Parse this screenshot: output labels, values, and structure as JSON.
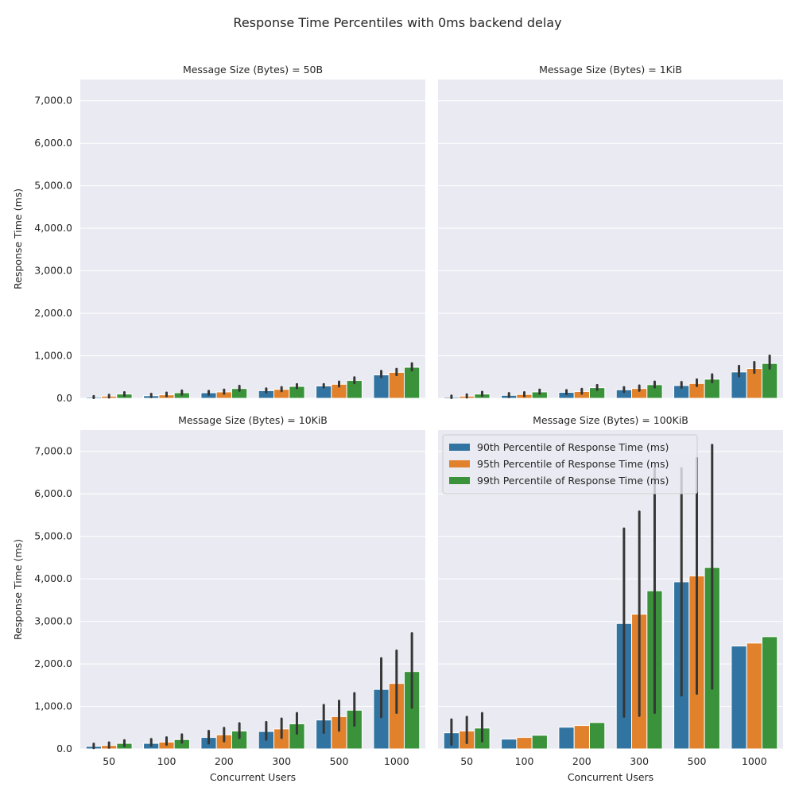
{
  "figure": {
    "title": "Response Time Percentiles with 0ms backend delay"
  },
  "colors": {
    "p90": "#3274a1",
    "p95": "#e1812c",
    "p99": "#3a923a",
    "panel_bg": "#eaeaf2",
    "grid": "#ffffff",
    "errorbar": "#363636"
  },
  "chart_data": [
    {
      "type": "bar",
      "title": "Message Size (Bytes) = 50B",
      "xlabel": "",
      "ylabel": "Response Time (ms)",
      "ylim": [
        0,
        7500
      ],
      "yticks": [
        0,
        1000,
        2000,
        3000,
        4000,
        5000,
        6000,
        7000
      ],
      "ytick_labels": [
        "0.0",
        "1,000.0",
        "2,000.0",
        "3,000.0",
        "4,000.0",
        "5,000.0",
        "6,000.0",
        "7,000.0"
      ],
      "show_xticklabels": false,
      "show_yticklabels": true,
      "categories": [
        "50",
        "100",
        "200",
        "300",
        "500",
        "1000"
      ],
      "series": [
        {
          "name": "90th Percentile of Response Time (ms)",
          "color_key": "p90",
          "values": [
            30,
            60,
            130,
            180,
            290,
            550
          ],
          "err_low": [
            10,
            30,
            90,
            140,
            260,
            500
          ],
          "err_high": [
            50,
            100,
            170,
            230,
            330,
            640
          ]
        },
        {
          "name": "95th Percentile of Response Time (ms)",
          "color_key": "p95",
          "values": [
            50,
            80,
            150,
            210,
            330,
            610
          ],
          "err_low": [
            20,
            50,
            110,
            170,
            280,
            550
          ],
          "err_high": [
            80,
            130,
            200,
            260,
            390,
            690
          ]
        },
        {
          "name": "99th Percentile of Response Time (ms)",
          "color_key": "p99",
          "values": [
            100,
            130,
            230,
            280,
            420,
            730
          ],
          "err_low": [
            60,
            90,
            180,
            240,
            360,
            660
          ],
          "err_high": [
            140,
            180,
            290,
            330,
            490,
            820
          ]
        }
      ]
    },
    {
      "type": "bar",
      "title": "Message Size (Bytes) = 1KiB",
      "xlabel": "",
      "ylabel": "",
      "ylim": [
        0,
        7500
      ],
      "show_xticklabels": false,
      "show_yticklabels": false,
      "categories": [
        "50",
        "100",
        "200",
        "300",
        "500",
        "1000"
      ],
      "series": [
        {
          "name": "90th Percentile of Response Time (ms)",
          "color_key": "p90",
          "values": [
            30,
            70,
            140,
            200,
            300,
            620
          ],
          "err_low": [
            10,
            30,
            100,
            150,
            250,
            520
          ],
          "err_high": [
            60,
            120,
            190,
            260,
            380,
            760
          ]
        },
        {
          "name": "95th Percentile of Response Time (ms)",
          "color_key": "p95",
          "values": [
            50,
            90,
            160,
            230,
            350,
            700
          ],
          "err_low": [
            20,
            50,
            110,
            180,
            290,
            600
          ],
          "err_high": [
            90,
            140,
            220,
            300,
            440,
            850
          ]
        },
        {
          "name": "99th Percentile of Response Time (ms)",
          "color_key": "p99",
          "values": [
            100,
            150,
            250,
            320,
            450,
            820
          ],
          "err_low": [
            60,
            110,
            200,
            260,
            380,
            700
          ],
          "err_high": [
            150,
            200,
            310,
            390,
            560,
            1000
          ]
        }
      ]
    },
    {
      "type": "bar",
      "title": "Message Size (Bytes) = 10KiB",
      "xlabel": "Concurrent Users",
      "ylabel": "Response Time (ms)",
      "ylim": [
        0,
        7500
      ],
      "yticks": [
        0,
        1000,
        2000,
        3000,
        4000,
        5000,
        6000,
        7000
      ],
      "ytick_labels": [
        "0.0",
        "1,000.0",
        "2,000.0",
        "3,000.0",
        "4,000.0",
        "5,000.0",
        "6,000.0",
        "7,000.0"
      ],
      "show_xticklabels": true,
      "show_yticklabels": true,
      "categories": [
        "50",
        "100",
        "200",
        "300",
        "500",
        "1000"
      ],
      "series": [
        {
          "name": "90th Percentile of Response Time (ms)",
          "color_key": "p90",
          "values": [
            60,
            130,
            270,
            410,
            680,
            1400
          ],
          "err_low": [
            20,
            80,
            130,
            220,
            380,
            750
          ],
          "err_high": [
            120,
            230,
            420,
            630,
            1030,
            2130
          ]
        },
        {
          "name": "95th Percentile of Response Time (ms)",
          "color_key": "p95",
          "values": [
            80,
            160,
            330,
            470,
            760,
            1540
          ],
          "err_low": [
            30,
            100,
            180,
            260,
            430,
            850
          ],
          "err_high": [
            150,
            270,
            490,
            710,
            1130,
            2310
          ]
        },
        {
          "name": "99th Percentile of Response Time (ms)",
          "color_key": "p99",
          "values": [
            130,
            220,
            420,
            590,
            910,
            1820
          ],
          "err_low": [
            70,
            150,
            260,
            360,
            550,
            970
          ],
          "err_high": [
            200,
            340,
            600,
            840,
            1310,
            2720
          ]
        }
      ]
    },
    {
      "type": "bar",
      "title": "Message Size (Bytes) = 100KiB",
      "xlabel": "Concurrent Users",
      "ylabel": "",
      "ylim": [
        0,
        7500
      ],
      "show_xticklabels": true,
      "show_yticklabels": false,
      "categories": [
        "50",
        "100",
        "200",
        "300",
        "500",
        "1000"
      ],
      "legend": {
        "placement": "top-left",
        "entries": [
          "90th Percentile of Response Time (ms)",
          "95th Percentile of Response Time (ms)",
          "99th Percentile of Response Time (ms)"
        ]
      },
      "series": [
        {
          "name": "90th Percentile of Response Time (ms)",
          "color_key": "p90",
          "values": [
            380,
            230,
            510,
            2950,
            3930,
            2420
          ],
          "err_low": [
            100,
            230,
            510,
            760,
            1260,
            2420
          ],
          "err_high": [
            690,
            230,
            510,
            5180,
            6600,
            2420
          ]
        },
        {
          "name": "95th Percentile of Response Time (ms)",
          "color_key": "p95",
          "values": [
            420,
            270,
            550,
            3170,
            4070,
            2490
          ],
          "err_low": [
            140,
            270,
            550,
            780,
            1300,
            2490
          ],
          "err_high": [
            750,
            270,
            550,
            5580,
            6840,
            2490
          ]
        },
        {
          "name": "99th Percentile of Response Time (ms)",
          "color_key": "p99",
          "values": [
            490,
            320,
            620,
            3720,
            4270,
            2640
          ],
          "err_low": [
            180,
            320,
            620,
            850,
            1420,
            2640
          ],
          "err_high": [
            840,
            320,
            620,
            6600,
            7150,
            2640
          ]
        }
      ]
    }
  ]
}
